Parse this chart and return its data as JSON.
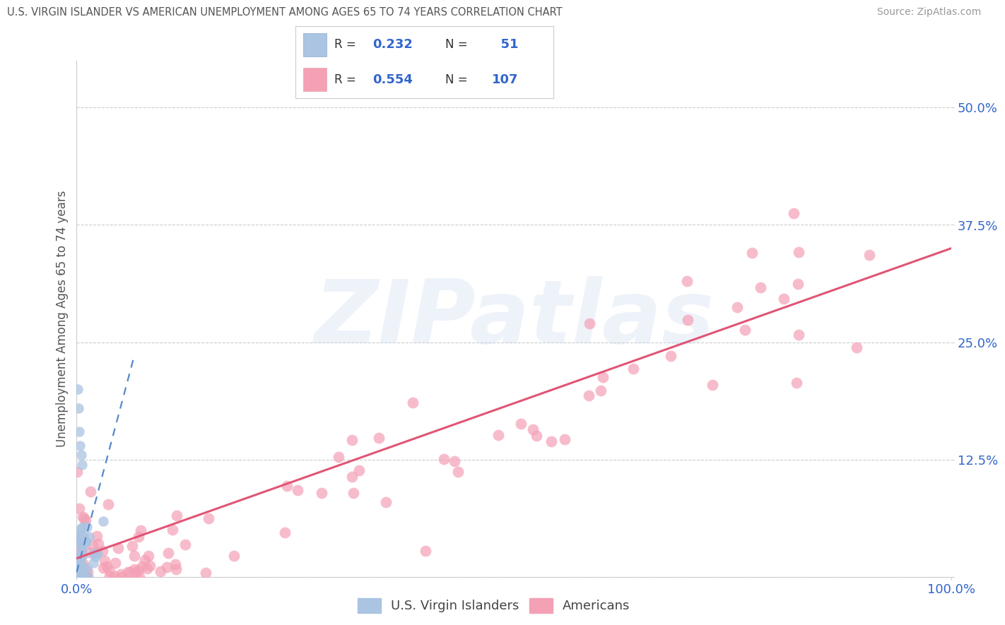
{
  "title": "U.S. VIRGIN ISLANDER VS AMERICAN UNEMPLOYMENT AMONG AGES 65 TO 74 YEARS CORRELATION CHART",
  "source": "Source: ZipAtlas.com",
  "ylabel": "Unemployment Among Ages 65 to 74 years",
  "legend_labels": [
    "U.S. Virgin Islanders",
    "Americans"
  ],
  "vi_R": 0.232,
  "vi_N": 51,
  "am_R": 0.554,
  "am_N": 107,
  "xlim": [
    0.0,
    1.0
  ],
  "ylim": [
    0.0,
    0.55
  ],
  "xtick_labels_ends": [
    "0.0%",
    "100.0%"
  ],
  "xtick_vals_ends": [
    0.0,
    1.0
  ],
  "ytick_labels": [
    "",
    "12.5%",
    "25.0%",
    "37.5%",
    "50.0%"
  ],
  "ytick_vals": [
    0.0,
    0.125,
    0.25,
    0.375,
    0.5
  ],
  "vi_color": "#aac4e2",
  "am_color": "#f4a0b5",
  "vi_line_color": "#5588cc",
  "am_line_color": "#e05575",
  "legend_box_vi": "#aac4e2",
  "legend_box_am": "#f4a0b5",
  "title_color": "#555555",
  "source_color": "#999999",
  "text_blue": "#3366cc",
  "watermark_text": "ZIPatlas",
  "background_color": "#ffffff",
  "grid_color": "#cccccc"
}
